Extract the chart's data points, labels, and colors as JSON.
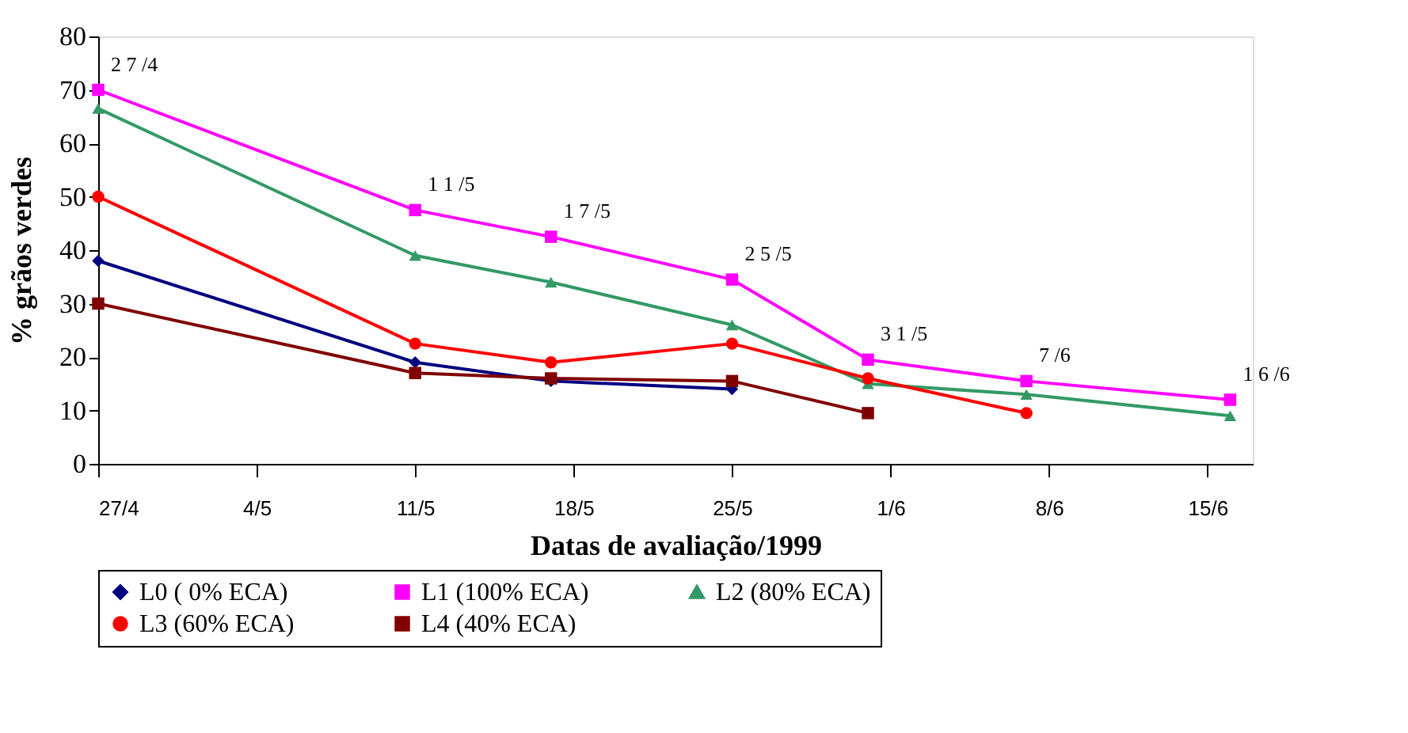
{
  "chart_data": {
    "type": "line",
    "xlabel": "Datas de avaliação/1999",
    "ylabel": "% grãos verdes",
    "xlim": [
      "1999-04-27",
      "1999-06-17"
    ],
    "xticks": [
      {
        "value": "1999-04-27",
        "label": "27/4"
      },
      {
        "value": "1999-05-04",
        "label": "4/5"
      },
      {
        "value": "1999-05-11",
        "label": "11/5"
      },
      {
        "value": "1999-05-18",
        "label": "18/5"
      },
      {
        "value": "1999-05-25",
        "label": "25/5"
      },
      {
        "value": "1999-06-01",
        "label": "1/6"
      },
      {
        "value": "1999-06-08",
        "label": "8/6"
      },
      {
        "value": "1999-06-15",
        "label": "15/6"
      }
    ],
    "ylim": [
      0,
      80
    ],
    "yticks": [
      0,
      10,
      20,
      30,
      40,
      50,
      60,
      70,
      80
    ],
    "grid": false,
    "legend": "bottom",
    "series": [
      {
        "name": "L0 ( 0% ECA)",
        "color": "#000080",
        "marker": "diamond",
        "x": [
          "1999-04-27",
          "1999-05-11",
          "1999-05-17",
          "1999-05-25"
        ],
        "values": [
          38,
          19,
          15.5,
          14
        ]
      },
      {
        "name": "L1 (100% ECA)",
        "color": "#ff00ff",
        "marker": "square",
        "x": [
          "1999-04-27",
          "1999-05-11",
          "1999-05-17",
          "1999-05-25",
          "1999-05-31",
          "1999-06-07",
          "1999-06-16"
        ],
        "values": [
          70,
          47.5,
          42.5,
          34.5,
          19.5,
          15.5,
          12
        ]
      },
      {
        "name": "L2 (80% ECA)",
        "color": "#339966",
        "marker": "triangle",
        "x": [
          "1999-04-27",
          "1999-05-11",
          "1999-05-17",
          "1999-05-25",
          "1999-05-31",
          "1999-06-07",
          "1999-06-16"
        ],
        "values": [
          66.5,
          39,
          34,
          26,
          15,
          13,
          9
        ]
      },
      {
        "name": "L3 (60% ECA)",
        "color": "#ff0000",
        "marker": "circle",
        "x": [
          "1999-04-27",
          "1999-05-11",
          "1999-05-17",
          "1999-05-25",
          "1999-05-31",
          "1999-06-07"
        ],
        "values": [
          50,
          22.5,
          19,
          22.5,
          16,
          9.5
        ]
      },
      {
        "name": "L4 (40% ECA)",
        "color": "#800000",
        "marker": "square",
        "x": [
          "1999-04-27",
          "1999-05-11",
          "1999-05-17",
          "1999-05-25",
          "1999-05-31"
        ],
        "values": [
          30,
          17,
          16,
          15.5,
          9.5
        ]
      }
    ],
    "annotations": [
      {
        "text": "2 7 /4",
        "x": "1999-04-27",
        "y": 70
      },
      {
        "text": "1 1 /5",
        "x": "1999-05-11",
        "y": 47.5
      },
      {
        "text": "1 7 /5",
        "x": "1999-05-17",
        "y": 42.5
      },
      {
        "text": "2 5 /5",
        "x": "1999-05-25",
        "y": 34.5
      },
      {
        "text": "3 1 /5",
        "x": "1999-05-31",
        "y": 19.5
      },
      {
        "text": "7 /6",
        "x": "1999-06-07",
        "y": 15.5
      },
      {
        "text": "1 6 /6",
        "x": "1999-06-16",
        "y": 12
      }
    ]
  }
}
